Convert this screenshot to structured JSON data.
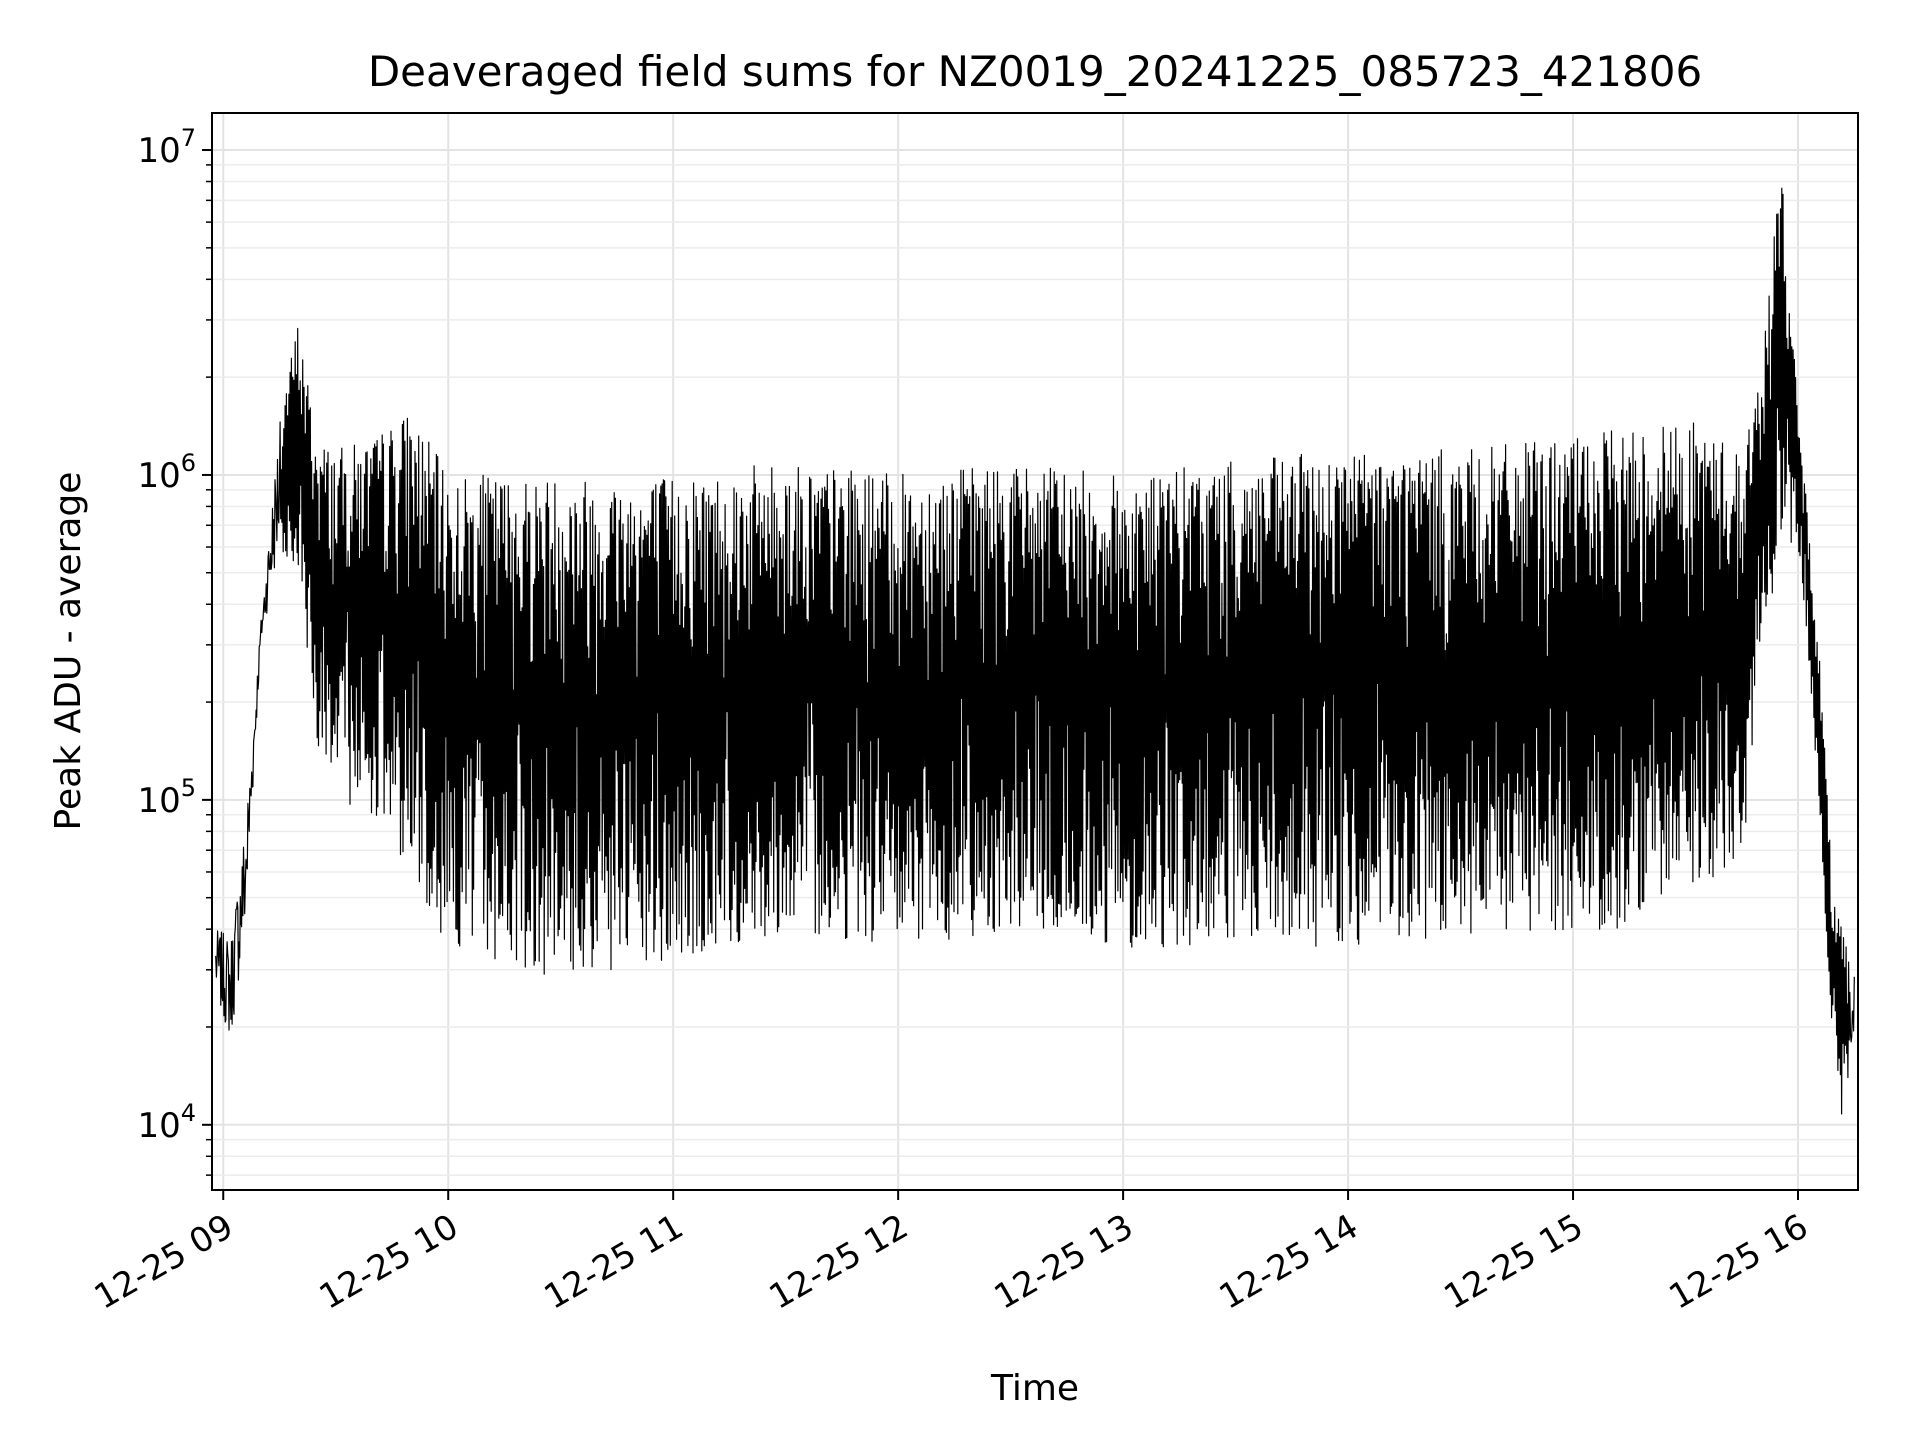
{
  "chart_data": {
    "type": "line",
    "title": "Deaveraged field sums for NZ0019_20241225_085723_421806",
    "xlabel": "Time",
    "ylabel": "Peak ADU - average",
    "yscale": "log",
    "ylim": [
      6300,
      13000000
    ],
    "xlim": [
      "2024-12-25 08:57",
      "2024-12-25 16:16"
    ],
    "x_ticks": [
      "12-25 09",
      "12-25 10",
      "12-25 11",
      "12-25 12",
      "12-25 13",
      "12-25 14",
      "12-25 15",
      "12-25 16"
    ],
    "y_ticks": [
      {
        "value": 10000,
        "base": "10",
        "exp": "4"
      },
      {
        "value": 100000,
        "base": "10",
        "exp": "5"
      },
      {
        "value": 1000000,
        "base": "10",
        "exp": "6"
      },
      {
        "value": 10000000,
        "base": "10",
        "exp": "7"
      }
    ],
    "grid": true,
    "line_color": "#000000",
    "series": [
      {
        "envelope": {
          "x": [
            "08:58",
            "09:02",
            "09:06",
            "09:10",
            "09:15",
            "09:20",
            "09:25",
            "09:30",
            "09:40",
            "09:50",
            "10:00",
            "10:30",
            "11:00",
            "11:30",
            "12:00",
            "12:30",
            "13:00",
            "13:30",
            "14:00",
            "14:30",
            "15:00",
            "15:15",
            "15:30",
            "15:45",
            "15:50",
            "15:53",
            "15:56",
            "16:00",
            "16:03",
            "16:06",
            "16:09",
            "16:12",
            "16:15"
          ],
          "upper": [
            40000,
            38000,
            90000,
            350000,
            1500000,
            3000000,
            1300000,
            1200000,
            1300000,
            1600000,
            1000000,
            1000000,
            1000000,
            1100000,
            1000000,
            1100000,
            1000000,
            1100000,
            1200000,
            1200000,
            1300000,
            1400000,
            1500000,
            1200000,
            2000000,
            5000000,
            9000000,
            1500000,
            700000,
            250000,
            60000,
            40000,
            30000
          ],
          "lower": [
            25000,
            18000,
            40000,
            300000,
            600000,
            500000,
            150000,
            100000,
            90000,
            60000,
            35000,
            28000,
            30000,
            40000,
            35000,
            40000,
            35000,
            35000,
            35000,
            35000,
            40000,
            40000,
            55000,
            60000,
            300000,
            400000,
            600000,
            600000,
            250000,
            80000,
            20000,
            9000,
            20000
          ]
        }
      }
    ]
  }
}
